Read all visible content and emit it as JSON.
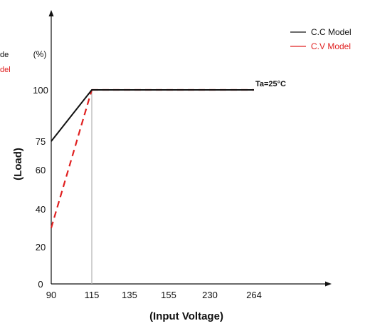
{
  "chart_data": {
    "type": "line",
    "title": "",
    "xlabel": "(Input Voltage)",
    "ylabel": "(Load)",
    "y_unit": "(%)",
    "categories": [
      "90",
      "115",
      "135",
      "155",
      "230",
      "264"
    ],
    "yticks": [
      0,
      20,
      40,
      60,
      75,
      100
    ],
    "ylim": [
      0,
      100
    ],
    "grid": false,
    "legend_position": "top-right",
    "series": [
      {
        "name": "C.C Model",
        "color": "#111111",
        "style": "solid",
        "points": [
          {
            "x": "90",
            "y": 75
          },
          {
            "x": "115",
            "y": 100
          },
          {
            "x": "264",
            "y": 100
          }
        ]
      },
      {
        "name": "C.V Model",
        "color": "#e02020",
        "style": "dashed",
        "points": [
          {
            "x": "90",
            "y": 30
          },
          {
            "x": "115",
            "y": 100
          },
          {
            "x": "264",
            "y": 100
          }
        ]
      }
    ],
    "reference_line": {
      "x": "115",
      "color": "#b0b0b0"
    },
    "annotation": "Ta=25°C",
    "cropped_left_texts": [
      {
        "text": "de",
        "color": "#111111"
      },
      {
        "text": "del",
        "color": "#e02020"
      }
    ]
  }
}
